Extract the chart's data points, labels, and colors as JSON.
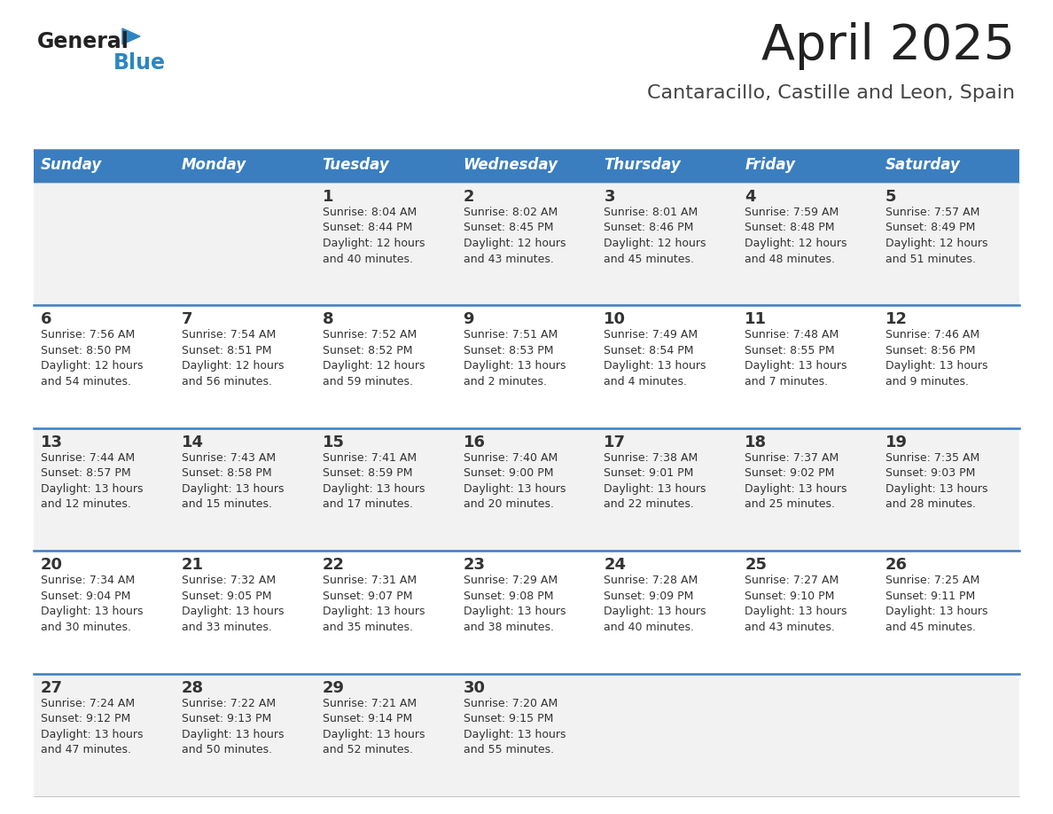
{
  "title": "April 2025",
  "subtitle": "Cantaracillo, Castille and Leon, Spain",
  "days_of_week": [
    "Sunday",
    "Monday",
    "Tuesday",
    "Wednesday",
    "Thursday",
    "Friday",
    "Saturday"
  ],
  "header_bg": "#3a7ebf",
  "header_text_color": "#FFFFFF",
  "row_bg_light": "#f2f2f2",
  "row_bg_white": "#FFFFFF",
  "cell_text_color": "#333333",
  "divider_color": "#3a7ebf",
  "title_color": "#222222",
  "subtitle_color": "#444444",
  "logo_general_color": "#222222",
  "logo_blue_color": "#2E86C1",
  "weeks": [
    [
      {
        "day": "",
        "info": ""
      },
      {
        "day": "",
        "info": ""
      },
      {
        "day": "1",
        "info": "Sunrise: 8:04 AM\nSunset: 8:44 PM\nDaylight: 12 hours\nand 40 minutes."
      },
      {
        "day": "2",
        "info": "Sunrise: 8:02 AM\nSunset: 8:45 PM\nDaylight: 12 hours\nand 43 minutes."
      },
      {
        "day": "3",
        "info": "Sunrise: 8:01 AM\nSunset: 8:46 PM\nDaylight: 12 hours\nand 45 minutes."
      },
      {
        "day": "4",
        "info": "Sunrise: 7:59 AM\nSunset: 8:48 PM\nDaylight: 12 hours\nand 48 minutes."
      },
      {
        "day": "5",
        "info": "Sunrise: 7:57 AM\nSunset: 8:49 PM\nDaylight: 12 hours\nand 51 minutes."
      }
    ],
    [
      {
        "day": "6",
        "info": "Sunrise: 7:56 AM\nSunset: 8:50 PM\nDaylight: 12 hours\nand 54 minutes."
      },
      {
        "day": "7",
        "info": "Sunrise: 7:54 AM\nSunset: 8:51 PM\nDaylight: 12 hours\nand 56 minutes."
      },
      {
        "day": "8",
        "info": "Sunrise: 7:52 AM\nSunset: 8:52 PM\nDaylight: 12 hours\nand 59 minutes."
      },
      {
        "day": "9",
        "info": "Sunrise: 7:51 AM\nSunset: 8:53 PM\nDaylight: 13 hours\nand 2 minutes."
      },
      {
        "day": "10",
        "info": "Sunrise: 7:49 AM\nSunset: 8:54 PM\nDaylight: 13 hours\nand 4 minutes."
      },
      {
        "day": "11",
        "info": "Sunrise: 7:48 AM\nSunset: 8:55 PM\nDaylight: 13 hours\nand 7 minutes."
      },
      {
        "day": "12",
        "info": "Sunrise: 7:46 AM\nSunset: 8:56 PM\nDaylight: 13 hours\nand 9 minutes."
      }
    ],
    [
      {
        "day": "13",
        "info": "Sunrise: 7:44 AM\nSunset: 8:57 PM\nDaylight: 13 hours\nand 12 minutes."
      },
      {
        "day": "14",
        "info": "Sunrise: 7:43 AM\nSunset: 8:58 PM\nDaylight: 13 hours\nand 15 minutes."
      },
      {
        "day": "15",
        "info": "Sunrise: 7:41 AM\nSunset: 8:59 PM\nDaylight: 13 hours\nand 17 minutes."
      },
      {
        "day": "16",
        "info": "Sunrise: 7:40 AM\nSunset: 9:00 PM\nDaylight: 13 hours\nand 20 minutes."
      },
      {
        "day": "17",
        "info": "Sunrise: 7:38 AM\nSunset: 9:01 PM\nDaylight: 13 hours\nand 22 minutes."
      },
      {
        "day": "18",
        "info": "Sunrise: 7:37 AM\nSunset: 9:02 PM\nDaylight: 13 hours\nand 25 minutes."
      },
      {
        "day": "19",
        "info": "Sunrise: 7:35 AM\nSunset: 9:03 PM\nDaylight: 13 hours\nand 28 minutes."
      }
    ],
    [
      {
        "day": "20",
        "info": "Sunrise: 7:34 AM\nSunset: 9:04 PM\nDaylight: 13 hours\nand 30 minutes."
      },
      {
        "day": "21",
        "info": "Sunrise: 7:32 AM\nSunset: 9:05 PM\nDaylight: 13 hours\nand 33 minutes."
      },
      {
        "day": "22",
        "info": "Sunrise: 7:31 AM\nSunset: 9:07 PM\nDaylight: 13 hours\nand 35 minutes."
      },
      {
        "day": "23",
        "info": "Sunrise: 7:29 AM\nSunset: 9:08 PM\nDaylight: 13 hours\nand 38 minutes."
      },
      {
        "day": "24",
        "info": "Sunrise: 7:28 AM\nSunset: 9:09 PM\nDaylight: 13 hours\nand 40 minutes."
      },
      {
        "day": "25",
        "info": "Sunrise: 7:27 AM\nSunset: 9:10 PM\nDaylight: 13 hours\nand 43 minutes."
      },
      {
        "day": "26",
        "info": "Sunrise: 7:25 AM\nSunset: 9:11 PM\nDaylight: 13 hours\nand 45 minutes."
      }
    ],
    [
      {
        "day": "27",
        "info": "Sunrise: 7:24 AM\nSunset: 9:12 PM\nDaylight: 13 hours\nand 47 minutes."
      },
      {
        "day": "28",
        "info": "Sunrise: 7:22 AM\nSunset: 9:13 PM\nDaylight: 13 hours\nand 50 minutes."
      },
      {
        "day": "29",
        "info": "Sunrise: 7:21 AM\nSunset: 9:14 PM\nDaylight: 13 hours\nand 52 minutes."
      },
      {
        "day": "30",
        "info": "Sunrise: 7:20 AM\nSunset: 9:15 PM\nDaylight: 13 hours\nand 55 minutes."
      },
      {
        "day": "",
        "info": ""
      },
      {
        "day": "",
        "info": ""
      },
      {
        "day": "",
        "info": ""
      }
    ]
  ]
}
